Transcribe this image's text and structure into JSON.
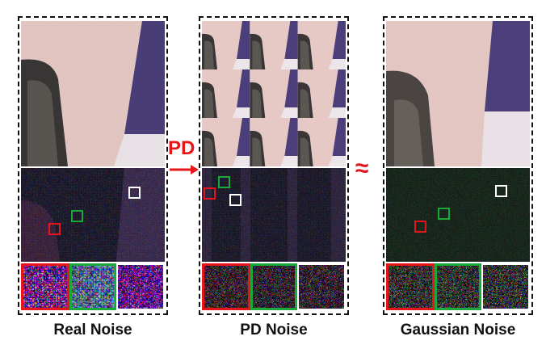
{
  "panels": [
    {
      "caption": "Real Noise"
    },
    {
      "caption": "PD Noise"
    },
    {
      "caption": "Gaussian Noise"
    }
  ],
  "arrow_label": "PD",
  "approx_symbol": "≈",
  "colors": {
    "red": "#e8141b",
    "green": "#1aa83a",
    "white": "#ffffff",
    "dash": "#111111"
  }
}
